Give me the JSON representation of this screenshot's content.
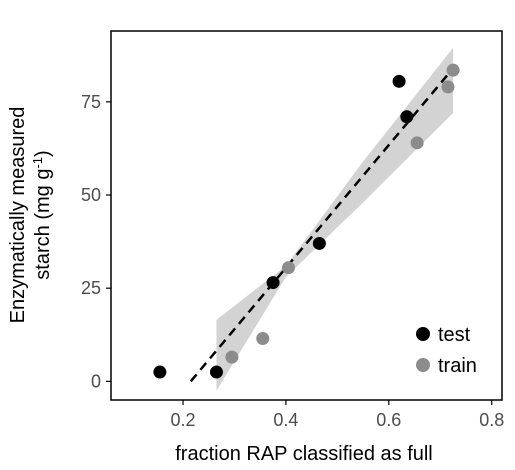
{
  "chart_data": {
    "type": "scatter",
    "title": "",
    "xlabel": "fraction RAP classified as full",
    "ylabel_line1": "Enzymatically measured",
    "ylabel_line2_prefix": "starch (mg g",
    "ylabel_line2_sup": "-1",
    "ylabel_line2_suffix": ")",
    "xlim": [
      0.06,
      0.82
    ],
    "ylim": [
      -5,
      94
    ],
    "x_ticks": [
      0.2,
      0.4,
      0.6,
      0.8
    ],
    "x_tick_labels": [
      "0.2",
      "0.4",
      "0.6",
      "0.8"
    ],
    "y_ticks": [
      0,
      25,
      50,
      75
    ],
    "y_tick_labels": [
      "0",
      "25",
      "50",
      "75"
    ],
    "grid": false,
    "legend_position": "bottom-right",
    "series": [
      {
        "name": "test",
        "color": "#000000",
        "points": [
          {
            "x": 0.155,
            "y": 2.5
          },
          {
            "x": 0.265,
            "y": 2.5
          },
          {
            "x": 0.375,
            "y": 26.5
          },
          {
            "x": 0.465,
            "y": 37.0
          },
          {
            "x": 0.62,
            "y": 80.5
          },
          {
            "x": 0.635,
            "y": 71.0
          }
        ]
      },
      {
        "name": "train",
        "color": "#8c8c8c",
        "points": [
          {
            "x": 0.295,
            "y": 6.5
          },
          {
            "x": 0.355,
            "y": 11.5
          },
          {
            "x": 0.405,
            "y": 30.5
          },
          {
            "x": 0.655,
            "y": 64.0
          },
          {
            "x": 0.715,
            "y": 79.0
          },
          {
            "x": 0.725,
            "y": 83.5
          }
        ]
      }
    ],
    "fit_line": {
      "style": "dashed",
      "color": "#000000",
      "x_start": 0.215,
      "x_end": 0.725,
      "y_start": 0.0,
      "y_end": 84.0
    },
    "confidence_band": {
      "color": "#d3d3d3",
      "upper": [
        {
          "x": 0.265,
          "y": 16.5
        },
        {
          "x": 0.4,
          "y": 31.0
        },
        {
          "x": 0.55,
          "y": 59.0
        },
        {
          "x": 0.725,
          "y": 89.5
        }
      ],
      "lower": [
        {
          "x": 0.265,
          "y": -2.5
        },
        {
          "x": 0.4,
          "y": 28.0
        },
        {
          "x": 0.55,
          "y": 48.0
        },
        {
          "x": 0.725,
          "y": 72.0
        }
      ]
    }
  }
}
